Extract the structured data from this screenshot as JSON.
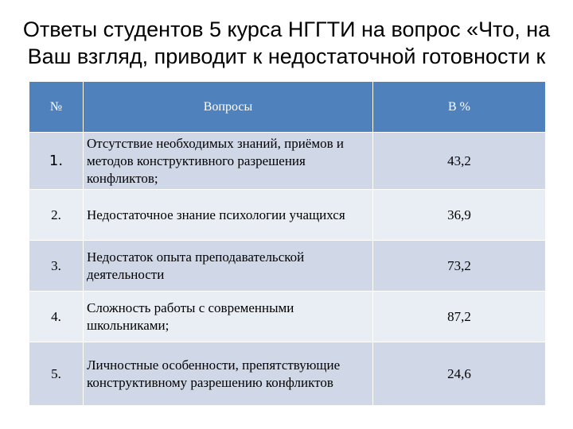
{
  "slide": {
    "title_lines": [
      "Ответы студентов 5 курса НГГТИ на вопрос «Что, на",
      "Ваш взгляд, приводит к   недостаточной готовности к"
    ]
  },
  "table": {
    "headers": [
      "№",
      "Вопросы",
      "В %"
    ],
    "rows": [
      {
        "num": "1.",
        "question": "Отсутствие необходимых знаний, приёмов и методов конструктивного разрешения конфликтов;",
        "value": "43,2"
      },
      {
        "num": "2.",
        "question": "Недостаточное знание психологии учащихся",
        "value": "36,9"
      },
      {
        "num": "3.",
        "question": "Недостаток опыта преподавательской деятельности",
        "value": "73,2"
      },
      {
        "num": "4.",
        "question": "Сложность работы с современными школьниками;",
        "value": "87,2"
      },
      {
        "num": "5.",
        "question": "Личностные особенности, препятствующие конструктивному разрешению конфликтов",
        "value": "24,6"
      }
    ]
  },
  "colors": {
    "header_bg": "#4f81bd",
    "row_odd": "#d0d8e8",
    "row_even": "#e9edf4"
  }
}
